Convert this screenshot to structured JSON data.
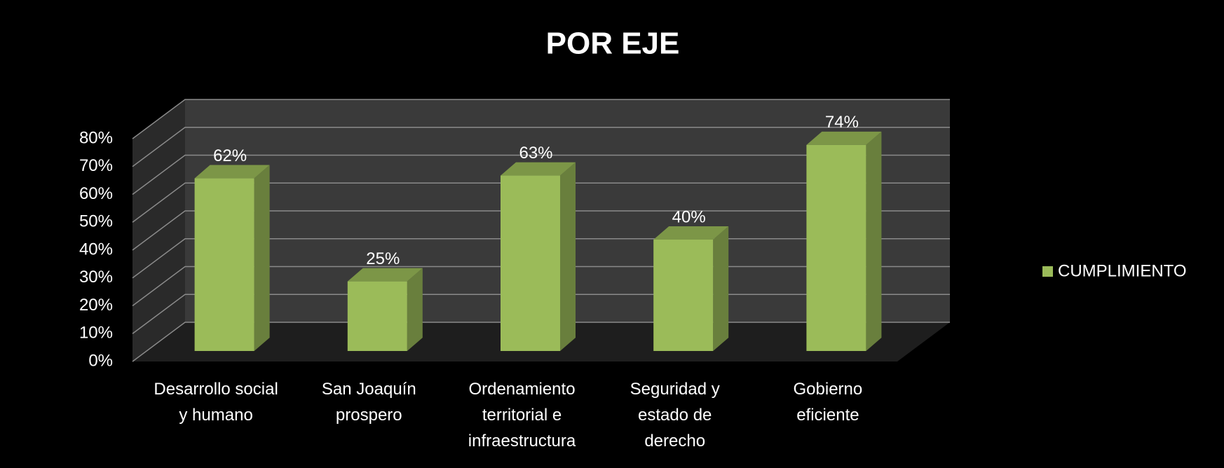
{
  "chart_data": {
    "type": "bar3d",
    "title": "POR EJE",
    "categories": [
      "Desarrollo social y humano",
      "San Joaquín prospero",
      "Ordenamiento territorial e infraestructura",
      "Seguridad y estado de derecho",
      "Gobierno eficiente"
    ],
    "series": [
      {
        "name": "CUMPLIMIENTO",
        "color": "#9bbb59",
        "values": [
          62,
          25,
          63,
          40,
          74
        ],
        "value_labels": [
          "62%",
          "25%",
          "63%",
          "40%",
          "74%"
        ]
      }
    ],
    "ylim": [
      0,
      80
    ],
    "yticks": [
      {
        "value": 0,
        "label": "0%"
      },
      {
        "value": 10,
        "label": "10%"
      },
      {
        "value": 20,
        "label": "20%"
      },
      {
        "value": 30,
        "label": "30%"
      },
      {
        "value": 40,
        "label": "40%"
      },
      {
        "value": 50,
        "label": "50%"
      },
      {
        "value": 60,
        "label": "60%"
      },
      {
        "value": 70,
        "label": "70%"
      },
      {
        "value": 80,
        "label": "80%"
      }
    ],
    "grid": true,
    "legend": "right"
  }
}
